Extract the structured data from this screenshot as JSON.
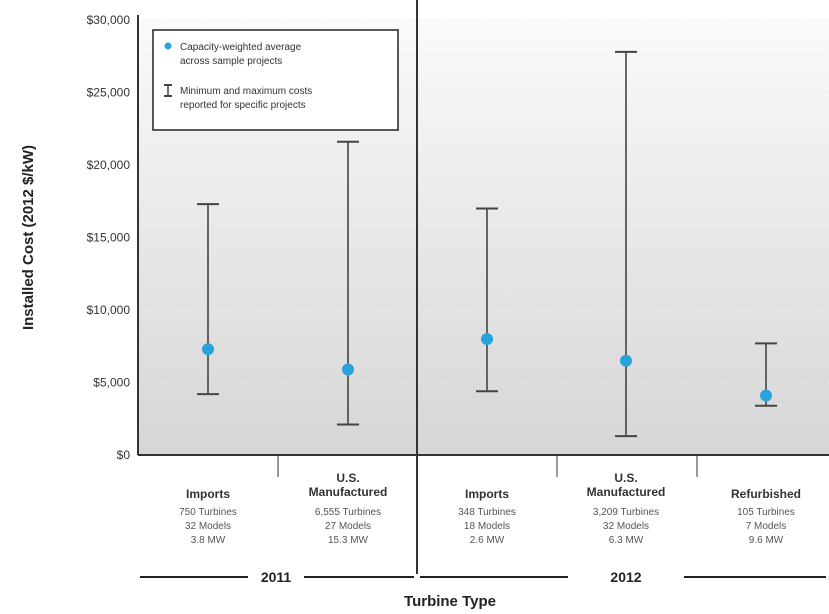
{
  "chart_data": {
    "type": "scatter",
    "title": "",
    "ylabel": "Installed Cost (2012 $/kW)",
    "xlabel": "Turbine Type",
    "ylim": [
      0,
      30000
    ],
    "yticks": [
      "$0",
      "$5,000",
      "$10,000",
      "$15,000",
      "$20,000",
      "$25,000",
      "$30,000"
    ],
    "grid": true,
    "legend": {
      "placement": "top-left",
      "entries": [
        [
          "Capacity-weighted average",
          "across sample projects"
        ],
        [
          "Minimum and maximum costs",
          "reported for specific projects"
        ]
      ]
    },
    "groups": [
      {
        "year": "2011",
        "categories": [
          0,
          1
        ]
      },
      {
        "year": "2012",
        "categories": [
          2,
          3,
          4
        ]
      }
    ],
    "categories": [
      {
        "name": [
          "Imports"
        ],
        "details": [
          "750 Turbines",
          "32 Models",
          "3.8 MW"
        ],
        "avg": 7300,
        "min": 4200,
        "max": 17300
      },
      {
        "name": [
          "U.S.",
          "Manufactured"
        ],
        "details": [
          "6,555 Turbines",
          "27 Models",
          "15.3 MW"
        ],
        "avg": 5900,
        "min": 2100,
        "max": 21600
      },
      {
        "name": [
          "Imports"
        ],
        "details": [
          "348 Turbines",
          "18 Models",
          "2.6 MW"
        ],
        "avg": 8000,
        "min": 4400,
        "max": 17000
      },
      {
        "name": [
          "U.S.",
          "Manufactured"
        ],
        "details": [
          "3,209 Turbines",
          "32 Models",
          "6.3 MW"
        ],
        "avg": 6500,
        "min": 1300,
        "max": 27800
      },
      {
        "name": [
          "Refurbished"
        ],
        "details": [
          "105 Turbines",
          "7 Models",
          "9.6 MW"
        ],
        "avg": 4100,
        "min": 3400,
        "max": 7700
      }
    ],
    "colors": {
      "avg": "#29a3dc",
      "range": "#444444",
      "axis": "#333333",
      "plot_bg_top": "#fafafa",
      "plot_bg_bottom": "#d6d6d6",
      "grid": "#ffffff"
    }
  }
}
